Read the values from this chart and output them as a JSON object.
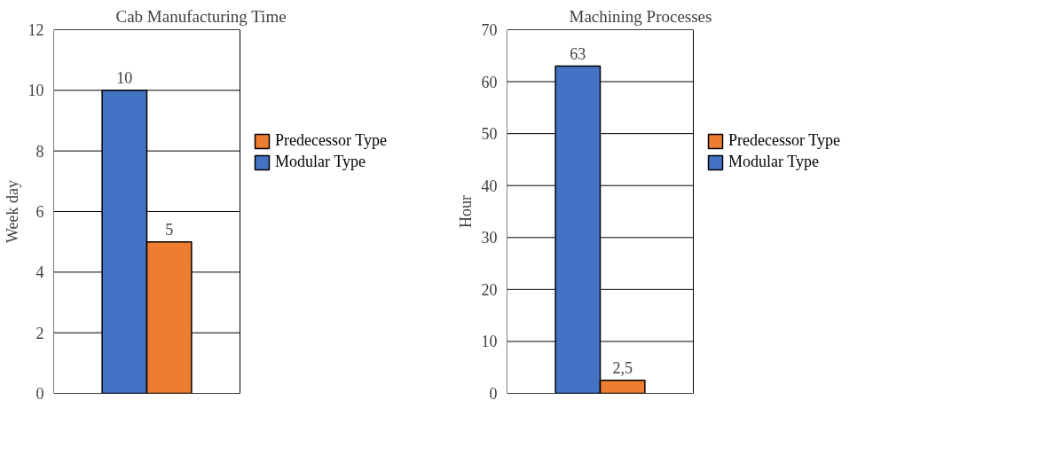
{
  "chart_data": [
    {
      "type": "bar",
      "title": "Cab Manufacturing Time",
      "ylabel": "Week day",
      "categories": [
        null
      ],
      "series": [
        {
          "name": "Modular Type",
          "color": "#4472c4",
          "values": [
            10
          ]
        },
        {
          "name": "Predecessor Type",
          "color": "#ed7d31",
          "values": [
            5
          ]
        }
      ],
      "ylim": [
        0,
        12
      ],
      "yticks": [
        0,
        2,
        4,
        6,
        8,
        10,
        12
      ],
      "grid": "y",
      "legend": "right",
      "data_labels": true
    },
    {
      "type": "bar",
      "title": "Machining Processes",
      "ylabel": "Hour",
      "categories": [
        null
      ],
      "series": [
        {
          "name": "Modular Type",
          "color": "#4472c4",
          "values": [
            63
          ],
          "value_labels": [
            "63"
          ]
        },
        {
          "name": "Predecessor Type",
          "color": "#ed7d31",
          "values": [
            2.5
          ],
          "value_labels": [
            "2,5"
          ]
        }
      ],
      "ylim": [
        0,
        70
      ],
      "yticks": [
        0,
        10,
        20,
        30,
        40,
        50,
        60,
        70
      ],
      "grid": "y",
      "legend": "right"
    }
  ]
}
